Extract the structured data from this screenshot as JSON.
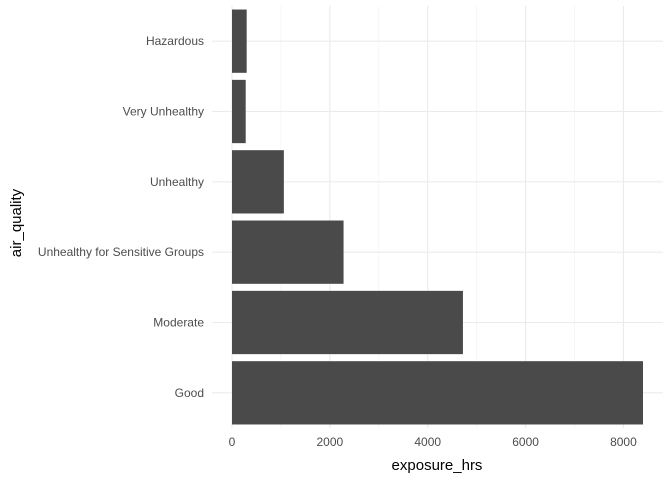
{
  "chart_data": {
    "type": "bar",
    "orientation": "horizontal",
    "categories": [
      "Good",
      "Moderate",
      "Unhealthy for Sensitive Groups",
      "Unhealthy",
      "Very Unhealthy",
      "Hazardous"
    ],
    "values": [
      8400,
      4720,
      2280,
      1060,
      280,
      300
    ],
    "xlabel": "exposure_hrs",
    "ylabel": "air_quality",
    "title": "",
    "xlim": [
      0,
      8750
    ],
    "x_ticks": [
      0,
      2000,
      4000,
      6000,
      8000
    ],
    "grid": true,
    "legend": "none",
    "colors": {
      "bar": "#4a4a4a",
      "grid_major": "#ebebeb",
      "grid_minor": "#f4f4f4",
      "tick_text": "#4d4d4d",
      "axis_title": "#000000"
    }
  }
}
